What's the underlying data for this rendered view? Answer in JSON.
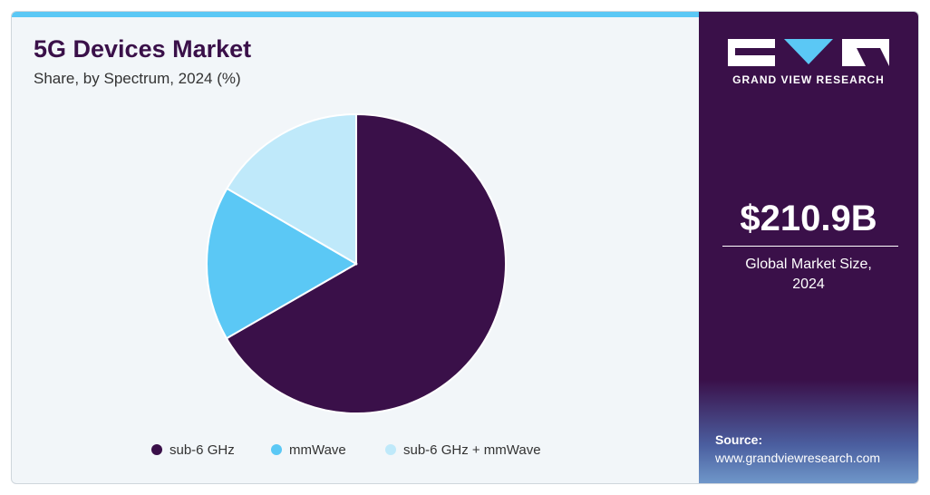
{
  "chart_data": {
    "type": "pie",
    "title": "5G Devices Market",
    "subtitle": "Share, by Spectrum, 2024 (%)",
    "categories": [
      "sub-6 GHz",
      "mmWave",
      "sub-6 GHz + mmWave"
    ],
    "values": [
      66.7,
      16.7,
      16.6
    ],
    "colors": [
      "#3a1049",
      "#5bc8f5",
      "#bfe9fa"
    ]
  },
  "sidebar": {
    "brand": "GRAND VIEW RESEARCH",
    "market_size": "$210.9B",
    "market_size_label": "Global Market Size, 2024",
    "source_label": "Source:",
    "source_url": "www.grandviewresearch.com"
  }
}
